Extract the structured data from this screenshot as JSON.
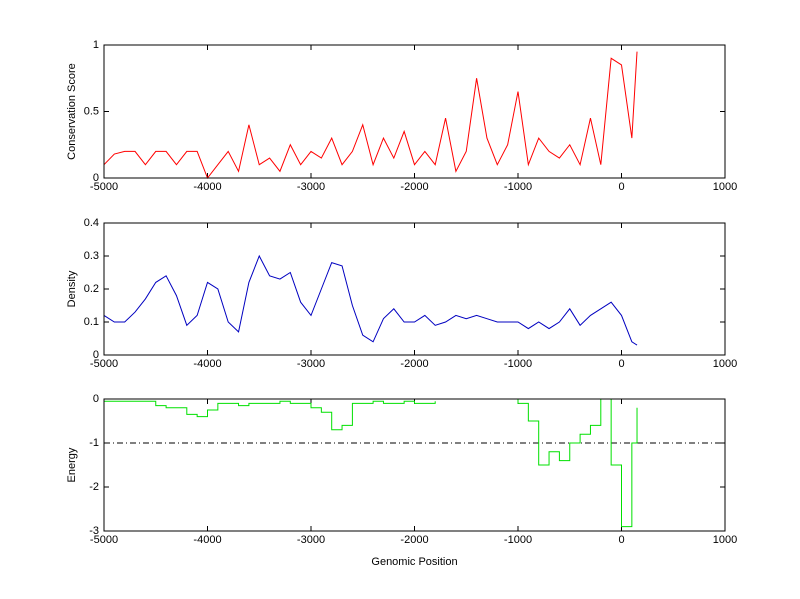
{
  "chart_data": [
    {
      "type": "line",
      "ylabel": "Conservation Score",
      "x": [
        -5000,
        -4900,
        -4800,
        -4700,
        -4600,
        -4500,
        -4400,
        -4300,
        -4200,
        -4100,
        -4000,
        -3900,
        -3800,
        -3700,
        -3600,
        -3500,
        -3400,
        -3300,
        -3200,
        -3100,
        -3000,
        -2900,
        -2800,
        -2700,
        -2600,
        -2500,
        -2400,
        -2300,
        -2200,
        -2100,
        -2000,
        -1900,
        -1800,
        -1700,
        -1600,
        -1500,
        -1400,
        -1300,
        -1200,
        -1100,
        -1000,
        -900,
        -800,
        -700,
        -600,
        -500,
        -400,
        -300,
        -200,
        -100,
        0,
        100,
        150
      ],
      "series": [
        {
          "color": "#ff0000",
          "values": [
            0.1,
            0.18,
            0.2,
            0.2,
            0.1,
            0.2,
            0.2,
            0.1,
            0.2,
            0.2,
            0,
            0.1,
            0.2,
            0.05,
            0.4,
            0.1,
            0.15,
            0.05,
            0.25,
            0.1,
            0.2,
            0.15,
            0.3,
            0.1,
            0.2,
            0.4,
            0.1,
            0.3,
            0.15,
            0.35,
            0.1,
            0.2,
            0.1,
            0.45,
            0.05,
            0.2,
            0.75,
            0.3,
            0.1,
            0.25,
            0.65,
            0.1,
            0.3,
            0.2,
            0.15,
            0.25,
            0.1,
            0.45,
            0.1,
            0.9,
            0.85,
            0.3,
            0.95
          ]
        }
      ],
      "xlim": [
        -5000,
        1000
      ],
      "xticks": [
        -5000,
        -4000,
        -3000,
        -2000,
        -1000,
        0,
        1000
      ],
      "ylim": [
        0,
        1
      ],
      "yticks": [
        0,
        0.5,
        1
      ]
    },
    {
      "type": "line",
      "ylabel": "Density",
      "x": [
        -5000,
        -4900,
        -4800,
        -4700,
        -4600,
        -4500,
        -4400,
        -4300,
        -4200,
        -4100,
        -4000,
        -3900,
        -3800,
        -3700,
        -3600,
        -3500,
        -3400,
        -3300,
        -3200,
        -3100,
        -3000,
        -2900,
        -2800,
        -2700,
        -2600,
        -2500,
        -2400,
        -2300,
        -2200,
        -2100,
        -2000,
        -1900,
        -1800,
        -1700,
        -1600,
        -1500,
        -1400,
        -1300,
        -1200,
        -1100,
        -1000,
        -900,
        -800,
        -700,
        -600,
        -500,
        -400,
        -300,
        -200,
        -100,
        0,
        100,
        150
      ],
      "series": [
        {
          "color": "#0000c0",
          "values": [
            0.12,
            0.1,
            0.1,
            0.13,
            0.17,
            0.22,
            0.24,
            0.18,
            0.09,
            0.12,
            0.22,
            0.2,
            0.1,
            0.07,
            0.22,
            0.3,
            0.24,
            0.23,
            0.25,
            0.16,
            0.12,
            0.2,
            0.28,
            0.27,
            0.15,
            0.06,
            0.04,
            0.11,
            0.14,
            0.1,
            0.1,
            0.12,
            0.09,
            0.1,
            0.12,
            0.11,
            0.12,
            0.11,
            0.1,
            0.1,
            0.1,
            0.08,
            0.1,
            0.08,
            0.1,
            0.14,
            0.09,
            0.12,
            0.14,
            0.16,
            0.12,
            0.04,
            0.03
          ]
        }
      ],
      "xlim": [
        -5000,
        1000
      ],
      "xticks": [
        -5000,
        -4000,
        -3000,
        -2000,
        -1000,
        0,
        1000
      ],
      "ylim": [
        0,
        0.4
      ],
      "yticks": [
        0,
        0.1,
        0.2,
        0.3,
        0.4
      ]
    },
    {
      "type": "step",
      "ylabel": "Energy",
      "xlabel": "Genomic Position",
      "x": [
        -5000,
        -4900,
        -4800,
        -4700,
        -4600,
        -4500,
        -4400,
        -4300,
        -4200,
        -4100,
        -4000,
        -3900,
        -3800,
        -3700,
        -3600,
        -3500,
        -3400,
        -3300,
        -3200,
        -3100,
        -3000,
        -2900,
        -2800,
        -2700,
        -2600,
        -2500,
        -2400,
        -2300,
        -2200,
        -2100,
        -2000,
        -1900,
        -1800,
        -1700,
        -1600,
        -1500,
        -1400,
        -1300,
        -1200,
        -1100,
        -1000,
        -900,
        -800,
        -700,
        -600,
        -500,
        -400,
        -300,
        -200,
        -100,
        0,
        100,
        150
      ],
      "series": [
        {
          "color": "#00e000",
          "values": [
            -0.05,
            -0.05,
            -0.05,
            -0.05,
            -0.05,
            -0.15,
            -0.2,
            -0.2,
            -0.35,
            -0.4,
            -0.25,
            -0.1,
            -0.1,
            -0.15,
            -0.1,
            -0.1,
            -0.1,
            -0.05,
            -0.1,
            -0.1,
            -0.2,
            -0.3,
            -0.7,
            -0.6,
            -0.1,
            -0.1,
            -0.05,
            -0.1,
            -0.1,
            -0.05,
            -0.1,
            -0.1,
            -0.05,
            null,
            null,
            null,
            null,
            null,
            null,
            0,
            -0.1,
            -0.5,
            -1.5,
            -1.2,
            -1.4,
            -1.0,
            -0.8,
            -0.6,
            0,
            -1.5,
            -2.9,
            -1.0,
            -0.2
          ]
        }
      ],
      "reference_line": -1,
      "xlim": [
        -5000,
        1000
      ],
      "xticks": [
        -5000,
        -4000,
        -3000,
        -2000,
        -1000,
        0,
        1000
      ],
      "ylim": [
        -3,
        0
      ],
      "yticks": [
        -3,
        -2,
        -1,
        0
      ]
    }
  ]
}
